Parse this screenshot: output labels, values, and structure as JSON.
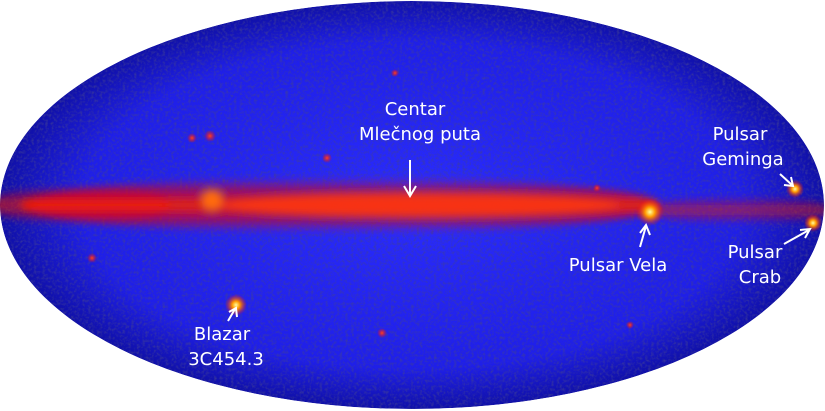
{
  "labels": [
    {
      "lines": [
        "Centar",
        "Mlečnog puta"
      ]
    },
    {
      "lines": [
        "Pulsar",
        "Geminga"
      ]
    },
    {
      "lines": [
        "Pulsar Vela"
      ]
    },
    {
      "lines": [
        "Pulsar",
        "Crab"
      ]
    },
    {
      "lines": [
        "Blazar",
        "3C454.3"
      ]
    }
  ]
}
